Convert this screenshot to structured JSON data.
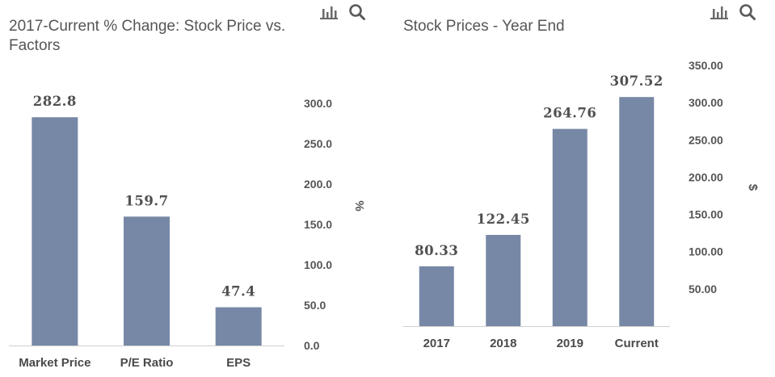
{
  "chart_data": [
    {
      "type": "bar",
      "title": "2017-Current % Change: Stock Price vs. Factors",
      "categories": [
        "Market Price",
        "P/E Ratio",
        "EPS"
      ],
      "values": [
        282.8,
        159.7,
        47.4
      ],
      "data_labels": [
        "282.8",
        "159.7",
        "47.4"
      ],
      "ylim": [
        0,
        300
      ],
      "yticks": [
        "0.0",
        "50.0",
        "100.0",
        "150.0",
        "200.0",
        "250.0",
        "300.0"
      ],
      "y_unit": "%",
      "y_axis_side": "right",
      "bar_color": "#7788a6",
      "grid": false
    },
    {
      "type": "bar",
      "title": "Stock Prices - Year End",
      "categories": [
        "2017",
        "2018",
        "2019",
        "Current"
      ],
      "values": [
        80.33,
        122.45,
        264.76,
        307.52
      ],
      "data_labels": [
        "80.33",
        "122.45",
        "264.76",
        "307.52"
      ],
      "ylim": [
        0,
        350
      ],
      "yticks": [
        "50.00",
        "100.00",
        "150.00",
        "200.00",
        "250.00",
        "300.00",
        "350.00"
      ],
      "y_unit": "$",
      "y_axis_side": "right",
      "bar_color": "#7788a6",
      "grid": false
    }
  ],
  "toolbar": {
    "icons": [
      "bar-chart-icon",
      "search-icon"
    ]
  }
}
